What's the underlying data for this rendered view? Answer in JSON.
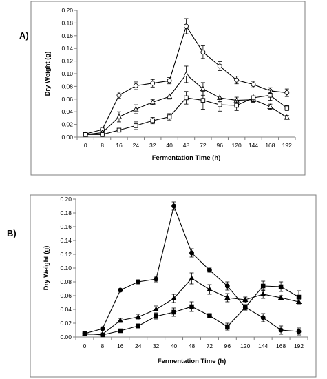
{
  "panels": [
    {
      "label": "A)"
    },
    {
      "label": "B)"
    }
  ],
  "chart_data": [
    {
      "type": "line",
      "panel": "A)",
      "xlabel": "Fermentation Time (h)",
      "ylabel": "Dry Weight (g)",
      "categories": [
        "0",
        "8",
        "16",
        "24",
        "32",
        "40",
        "48",
        "72",
        "96",
        "120",
        "144",
        "168",
        "192"
      ],
      "ylim": [
        0,
        0.2
      ],
      "yticks": [
        "0.00",
        "0.02",
        "0.04",
        "0.06",
        "0.08",
        "0.10",
        "0.12",
        "0.14",
        "0.16",
        "0.18",
        "0.20"
      ],
      "marker_style": "open",
      "series": [
        {
          "marker": "circle",
          "values": [
            0.005,
            0.012,
            0.066,
            0.081,
            0.085,
            0.089,
            0.175,
            0.134,
            0.112,
            0.09,
            0.083,
            0.073,
            0.07
          ],
          "errors": [
            0.002,
            0.003,
            0.005,
            0.006,
            0.006,
            0.005,
            0.012,
            0.01,
            0.007,
            0.006,
            0.005,
            0.005,
            0.006
          ]
        },
        {
          "marker": "triangle",
          "values": [
            0.004,
            0.007,
            0.032,
            0.044,
            0.055,
            0.064,
            0.099,
            0.076,
            0.062,
            0.058,
            0.059,
            0.048,
            0.031
          ],
          "errors": [
            0.002,
            0.002,
            0.008,
            0.007,
            0.004,
            0.004,
            0.013,
            0.01,
            0.006,
            0.005,
            0.004,
            0.004,
            0.003
          ]
        },
        {
          "marker": "square",
          "values": [
            0.004,
            0.004,
            0.011,
            0.018,
            0.026,
            0.032,
            0.062,
            0.058,
            0.051,
            0.05,
            0.062,
            0.066,
            0.046
          ],
          "errors": [
            0.002,
            0.002,
            0.003,
            0.006,
            0.005,
            0.005,
            0.01,
            0.014,
            0.01,
            0.008,
            0.006,
            0.008,
            0.004
          ]
        }
      ]
    },
    {
      "type": "line",
      "panel": "B)",
      "xlabel": "Fermentation Time (h)",
      "ylabel": "Dry Weight (g)",
      "categories": [
        "0",
        "8",
        "16",
        "24",
        "32",
        "40",
        "48",
        "72",
        "96",
        "120",
        "144",
        "168",
        "192"
      ],
      "ylim": [
        0,
        0.2
      ],
      "yticks": [
        "0.00",
        "0.02",
        "0.04",
        "0.06",
        "0.08",
        "0.10",
        "0.12",
        "0.14",
        "0.16",
        "0.18",
        "0.20"
      ],
      "marker_style": "filled",
      "series": [
        {
          "marker": "circle",
          "values": [
            0.005,
            0.012,
            0.068,
            0.08,
            0.084,
            0.19,
            0.122,
            0.097,
            0.074,
            0.043,
            0.028,
            0.01,
            0.008
          ],
          "errors": [
            0.002,
            0.002,
            0.002,
            0.003,
            0.004,
            0.006,
            0.006,
            0.003,
            0.006,
            0.004,
            0.006,
            0.006,
            0.005
          ]
        },
        {
          "marker": "triangle",
          "values": [
            0.004,
            0.004,
            0.024,
            0.029,
            0.04,
            0.056,
            0.085,
            0.069,
            0.057,
            0.054,
            0.062,
            0.057,
            0.051
          ],
          "errors": [
            0.001,
            0.001,
            0.003,
            0.004,
            0.005,
            0.006,
            0.008,
            0.007,
            0.006,
            0.004,
            0.006,
            0.003,
            0.003
          ]
        },
        {
          "marker": "square",
          "values": [
            0.005,
            0.003,
            0.009,
            0.016,
            0.03,
            0.036,
            0.044,
            0.031,
            0.015,
            0.043,
            0.074,
            0.073,
            0.058
          ],
          "errors": [
            0.001,
            0.001,
            0.001,
            0.003,
            0.004,
            0.006,
            0.007,
            0.003,
            0.005,
            0.004,
            0.007,
            0.007,
            0.009
          ]
        }
      ]
    }
  ]
}
